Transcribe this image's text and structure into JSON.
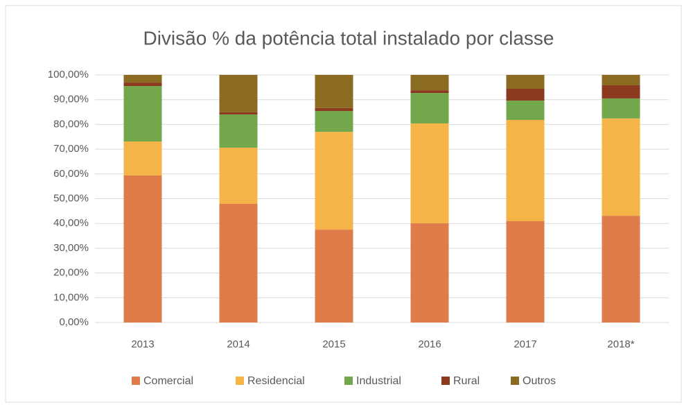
{
  "chart_data": {
    "type": "stacked_bar",
    "title": "Divisão % da potência total instalado por classe",
    "categories": [
      "2013",
      "2014",
      "2015",
      "2016",
      "2017",
      "2018*"
    ],
    "series": [
      {
        "name": "Comercial",
        "color": "#e07b4a",
        "values": [
          59.4,
          47.9,
          37.5,
          40.1,
          40.9,
          43.1
        ]
      },
      {
        "name": "Residencial",
        "color": "#f5b447",
        "values": [
          13.7,
          22.7,
          39.5,
          40.3,
          40.9,
          39.3
        ]
      },
      {
        "name": "Industrial",
        "color": "#72a84b",
        "values": [
          22.4,
          13.4,
          8.4,
          12.3,
          7.8,
          8.1
        ]
      },
      {
        "name": "Rural",
        "color": "#8b3a1f",
        "values": [
          1.4,
          0.9,
          1.2,
          1.1,
          4.8,
          5.3
        ]
      },
      {
        "name": "Outros",
        "color": "#8b6b22",
        "values": [
          3.1,
          15.1,
          13.4,
          6.2,
          5.6,
          4.2
        ]
      }
    ],
    "ylim": [
      0,
      100
    ],
    "yticks": [
      {
        "value": 0,
        "label": "0,00%"
      },
      {
        "value": 10,
        "label": "10,00%"
      },
      {
        "value": 20,
        "label": "20,00%"
      },
      {
        "value": 30,
        "label": "30,00%"
      },
      {
        "value": 40,
        "label": "40,00%"
      },
      {
        "value": 50,
        "label": "50,00%"
      },
      {
        "value": 60,
        "label": "60,00%"
      },
      {
        "value": 70,
        "label": "70,00%"
      },
      {
        "value": 80,
        "label": "80,00%"
      },
      {
        "value": 90,
        "label": "90,00%"
      },
      {
        "value": 100,
        "label": "100,00%"
      }
    ],
    "grid": true,
    "legend": "bottom"
  }
}
